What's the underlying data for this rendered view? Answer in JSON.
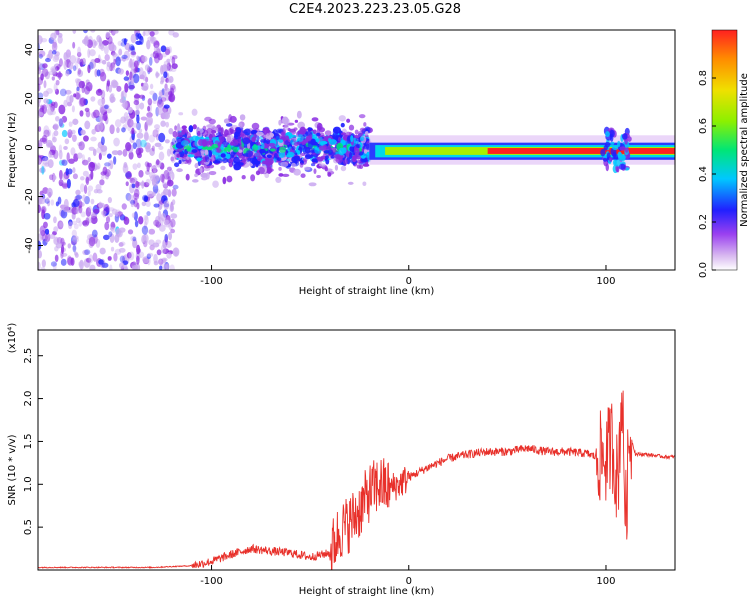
{
  "title": "C2E4.2023.223.23.05.G28",
  "colors": {
    "snr_line": "#e8302a",
    "colormap": [
      "#ffffff",
      "#c9a8f0",
      "#8a2be2",
      "#2020ff",
      "#00c8ff",
      "#00e676",
      "#a0f000",
      "#f0e000",
      "#ff8c00",
      "#ff2020"
    ]
  },
  "chart_data": [
    {
      "type": "heatmap",
      "xlabel": "Height of straight line (km)",
      "ylabel": "Frequency (Hz)",
      "xlim": [
        -188,
        135
      ],
      "ylim": [
        -50,
        48
      ],
      "x_ticks": [
        -100,
        0,
        100
      ],
      "y_ticks": [
        -40,
        -20,
        0,
        20,
        40
      ],
      "colorbar": {
        "label": "Normalized spectral amplitude",
        "range": [
          0,
          1
        ],
        "ticks": [
          "0.0",
          "0.2",
          "0.4",
          "0.6",
          "0.8"
        ]
      },
      "regions": [
        {
          "x": [
            -188,
            -118
          ],
          "freq_spread": [
            -50,
            48
          ],
          "amplitude": 0.1
        },
        {
          "x": [
            -118,
            -20
          ],
          "freq_center": 0,
          "freq_spread": [
            -18,
            15
          ],
          "amplitude": 0.35
        },
        {
          "x": [
            -20,
            135
          ],
          "freq_center": -1,
          "freq_spread": [
            -4,
            3
          ],
          "amplitude": 0.95
        }
      ]
    },
    {
      "type": "line",
      "xlabel": "Height of straight line (km)",
      "ylabel": "SNR (10 * v/v)",
      "yunit": "(x10⁴)",
      "xlim": [
        -188,
        135
      ],
      "ylim": [
        0,
        2.8
      ],
      "x_ticks": [
        -100,
        0,
        100
      ],
      "y_ticks": [
        "0.5",
        "1.0",
        "1.5",
        "2.0",
        "2.5"
      ],
      "series": [
        {
          "x": [
            -188,
            -160,
            -130,
            -110,
            -100,
            -90,
            -80,
            -70,
            -60,
            -50,
            -40,
            -35,
            -30,
            -25,
            -20,
            -15,
            -10,
            -5,
            0,
            10,
            20,
            30,
            40,
            50,
            60,
            70,
            80,
            90,
            95,
            100,
            103,
            106,
            108,
            110,
            112,
            115,
            120,
            130,
            135
          ],
          "y": [
            0.03,
            0.03,
            0.03,
            0.05,
            0.1,
            0.18,
            0.25,
            0.22,
            0.2,
            0.15,
            0.2,
            0.45,
            0.55,
            0.7,
            0.9,
            1.0,
            0.95,
            1.0,
            1.08,
            1.2,
            1.3,
            1.35,
            1.38,
            1.38,
            1.42,
            1.38,
            1.38,
            1.36,
            1.32,
            1.3,
            1.5,
            1.0,
            2.1,
            0.6,
            1.6,
            1.35,
            1.35,
            1.32,
            1.32
          ]
        }
      ]
    }
  ]
}
